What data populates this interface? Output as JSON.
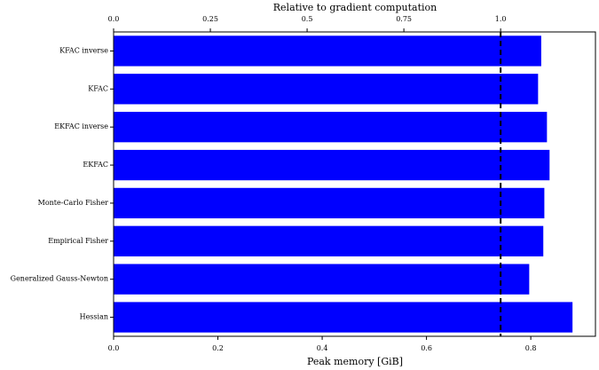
{
  "chart_data": {
    "type": "barh",
    "xlabel": "Peak memory [GiB]",
    "x2label": "Relative to gradient computation",
    "categories": [
      "KFAC inverse",
      "KFAC",
      "EKFAC inverse",
      "EKFAC",
      "Monte-Carlo Fisher",
      "Empirical Fisher",
      "Generalized Gauss-Newton",
      "Hessian"
    ],
    "values": [
      0.82,
      0.814,
      0.831,
      0.836,
      0.826,
      0.824,
      0.797,
      0.88
    ],
    "color": "#0000ff",
    "xlim": [
      0,
      0.924
    ],
    "xticks": [
      {
        "value": 0,
        "label": "0.0"
      },
      0.2,
      0.4,
      0.6,
      0.8
    ],
    "x2lim": [
      0,
      1.245
    ],
    "x2ticks": [
      {
        "value": 0,
        "label": "0.0"
      },
      0.25,
      0.5,
      0.75,
      {
        "value": 1,
        "label": "1.0"
      }
    ],
    "reference_x2": 1
  }
}
